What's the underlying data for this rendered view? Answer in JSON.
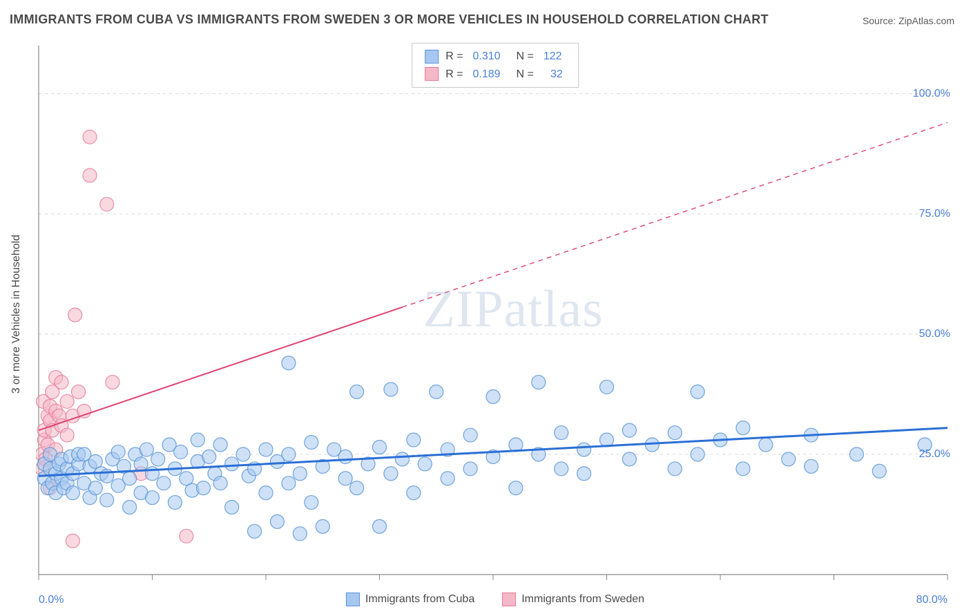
{
  "title": "IMMIGRANTS FROM CUBA VS IMMIGRANTS FROM SWEDEN 3 OR MORE VEHICLES IN HOUSEHOLD CORRELATION CHART",
  "source_label": "Source: ZipAtlas.com",
  "y_axis_label": "3 or more Vehicles in Household",
  "watermark": "ZIPatlas",
  "colors": {
    "series_a_fill": "#a6c8f0",
    "series_a_stroke": "#5b94d6",
    "series_b_fill": "#f5b8c7",
    "series_b_stroke": "#e67a9a",
    "line_a": "#2a6fd6",
    "line_b": "#e0436f",
    "axis": "#888888",
    "grid": "#d8d8d8",
    "tick_mark": "#888888",
    "text_value": "#4a7fd8",
    "text_label": "#4a4a4a",
    "background": "#ffffff"
  },
  "chart": {
    "type": "scatter",
    "xlim": [
      0,
      80
    ],
    "ylim": [
      0,
      110
    ],
    "x_ticks": [
      0,
      10,
      20,
      30,
      40,
      50,
      60,
      70,
      80
    ],
    "x_tick_labels": {
      "0": "0.0%",
      "80": "80.0%"
    },
    "y_gridlines": [
      25,
      50,
      75,
      100
    ],
    "y_tick_labels": {
      "25": "25.0%",
      "50": "50.0%",
      "75": "75.0%",
      "100": "100.0%"
    },
    "marker_radius": 10,
    "marker_opacity": 0.55,
    "line_width_a": 3,
    "line_width_b": 2,
    "dash_b_after_x": 32
  },
  "stats": {
    "series_a": {
      "R": "0.310",
      "N": "122"
    },
    "series_b": {
      "R": "0.189",
      "N": "32"
    }
  },
  "legend": {
    "series_a": "Immigrants from Cuba",
    "series_b": "Immigrants from Sweden"
  },
  "trend_lines": {
    "a": {
      "x1": 0,
      "y1": 20.5,
      "x2": 80,
      "y2": 30.5
    },
    "b": {
      "x1": 0,
      "y1": 30,
      "x2": 80,
      "y2": 94
    }
  },
  "series_a_points": [
    [
      0.5,
      20
    ],
    [
      0.5,
      23
    ],
    [
      0.8,
      18
    ],
    [
      1,
      22
    ],
    [
      1,
      25
    ],
    [
      1.2,
      19
    ],
    [
      1.5,
      21
    ],
    [
      1.5,
      17
    ],
    [
      1.8,
      23
    ],
    [
      2,
      20
    ],
    [
      2,
      24
    ],
    [
      2.2,
      18
    ],
    [
      2.5,
      22
    ],
    [
      2.5,
      19
    ],
    [
      2.8,
      24.5
    ],
    [
      3,
      21
    ],
    [
      3,
      17
    ],
    [
      3.5,
      23
    ],
    [
      3.5,
      25
    ],
    [
      4,
      19
    ],
    [
      4,
      25
    ],
    [
      4.5,
      16
    ],
    [
      4.5,
      22.5
    ],
    [
      5,
      18
    ],
    [
      5,
      23.5
    ],
    [
      5.5,
      21
    ],
    [
      6,
      20.5
    ],
    [
      6,
      15.5
    ],
    [
      6.5,
      24
    ],
    [
      7,
      18.5
    ],
    [
      7,
      25.5
    ],
    [
      7.5,
      22.5
    ],
    [
      8,
      20
    ],
    [
      8,
      14
    ],
    [
      8.5,
      25
    ],
    [
      9,
      23
    ],
    [
      9,
      17
    ],
    [
      9.5,
      26
    ],
    [
      10,
      21
    ],
    [
      10,
      16
    ],
    [
      10.5,
      24
    ],
    [
      11,
      19
    ],
    [
      11.5,
      27
    ],
    [
      12,
      22
    ],
    [
      12,
      15
    ],
    [
      12.5,
      25.5
    ],
    [
      13,
      20
    ],
    [
      13.5,
      17.5
    ],
    [
      14,
      23.5
    ],
    [
      14,
      28
    ],
    [
      14.5,
      18
    ],
    [
      15,
      24.5
    ],
    [
      15.5,
      21
    ],
    [
      16,
      19
    ],
    [
      16,
      27
    ],
    [
      17,
      23
    ],
    [
      17,
      14
    ],
    [
      18,
      25
    ],
    [
      18.5,
      20.5
    ],
    [
      19,
      22
    ],
    [
      19,
      9
    ],
    [
      20,
      26
    ],
    [
      20,
      17
    ],
    [
      21,
      23.5
    ],
    [
      21,
      11
    ],
    [
      22,
      19
    ],
    [
      22,
      25
    ],
    [
      22,
      44
    ],
    [
      23,
      21
    ],
    [
      23,
      8.5
    ],
    [
      24,
      27.5
    ],
    [
      24,
      15
    ],
    [
      25,
      22.5
    ],
    [
      25,
      10
    ],
    [
      26,
      26
    ],
    [
      27,
      20
    ],
    [
      27,
      24.5
    ],
    [
      28,
      18
    ],
    [
      28,
      38
    ],
    [
      29,
      23
    ],
    [
      30,
      10
    ],
    [
      30,
      26.5
    ],
    [
      31,
      21
    ],
    [
      31,
      38.5
    ],
    [
      32,
      24
    ],
    [
      33,
      17
    ],
    [
      33,
      28
    ],
    [
      34,
      23
    ],
    [
      35,
      38
    ],
    [
      36,
      20
    ],
    [
      36,
      26
    ],
    [
      38,
      22
    ],
    [
      38,
      29
    ],
    [
      40,
      24.5
    ],
    [
      40,
      37
    ],
    [
      42,
      27
    ],
    [
      42,
      18
    ],
    [
      44,
      25
    ],
    [
      44,
      40
    ],
    [
      46,
      22
    ],
    [
      46,
      29.5
    ],
    [
      48,
      26
    ],
    [
      48,
      21
    ],
    [
      50,
      28
    ],
    [
      50,
      39
    ],
    [
      52,
      24
    ],
    [
      52,
      30
    ],
    [
      54,
      27
    ],
    [
      56,
      22
    ],
    [
      56,
      29.5
    ],
    [
      58,
      25
    ],
    [
      58,
      38
    ],
    [
      60,
      28
    ],
    [
      62,
      30.5
    ],
    [
      62,
      22
    ],
    [
      64,
      27
    ],
    [
      66,
      24
    ],
    [
      68,
      29
    ],
    [
      68,
      22.5
    ],
    [
      72,
      25
    ],
    [
      74,
      21.5
    ],
    [
      78,
      27
    ]
  ],
  "series_b_points": [
    [
      0.3,
      22
    ],
    [
      0.3,
      25
    ],
    [
      0.4,
      36
    ],
    [
      0.5,
      28
    ],
    [
      0.5,
      30
    ],
    [
      0.6,
      24
    ],
    [
      0.8,
      33
    ],
    [
      0.8,
      27
    ],
    [
      1,
      32
    ],
    [
      1,
      35
    ],
    [
      1,
      18
    ],
    [
      1.2,
      30
    ],
    [
      1.2,
      38
    ],
    [
      1.5,
      26
    ],
    [
      1.5,
      34
    ],
    [
      1.5,
      41
    ],
    [
      1.8,
      33
    ],
    [
      2,
      31
    ],
    [
      2,
      40
    ],
    [
      2.5,
      29
    ],
    [
      2.5,
      36
    ],
    [
      3,
      33
    ],
    [
      3,
      7
    ],
    [
      3.2,
      54
    ],
    [
      3.5,
      38
    ],
    [
      4,
      34
    ],
    [
      4.5,
      91
    ],
    [
      4.5,
      83
    ],
    [
      6,
      77
    ],
    [
      6.5,
      40
    ],
    [
      9,
      21
    ],
    [
      13,
      8
    ]
  ]
}
